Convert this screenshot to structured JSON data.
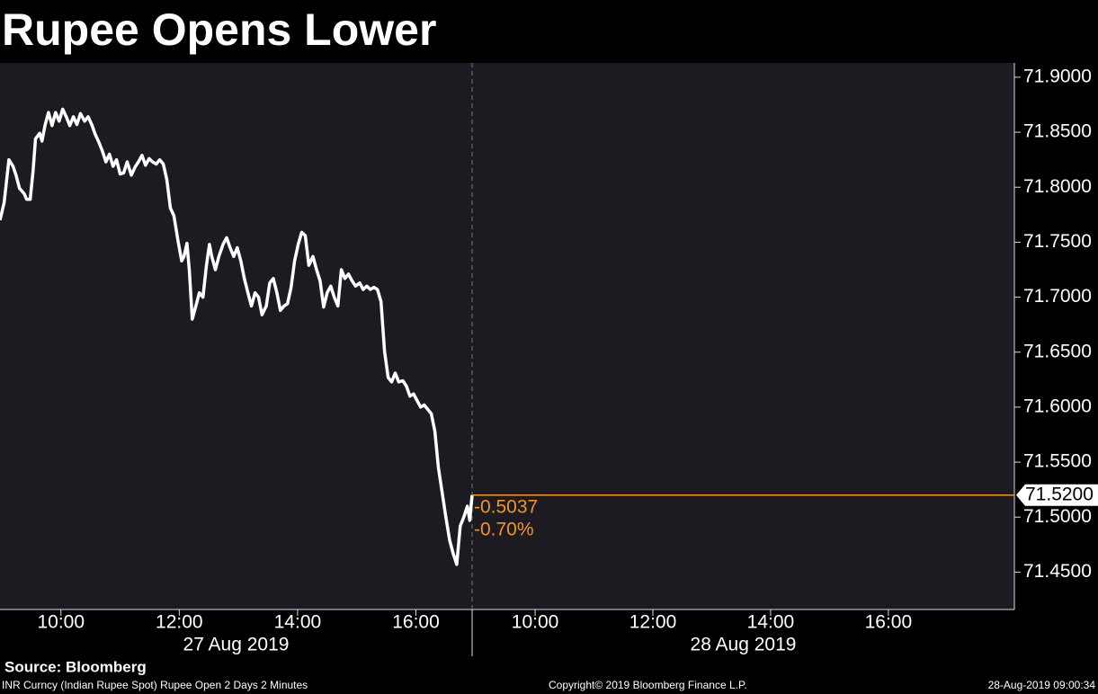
{
  "title": "Rupee Opens Lower",
  "chart_data": {
    "type": "line",
    "color": "#ffffff",
    "ylim": [
      71.416,
      71.913
    ],
    "yticks": [
      {
        "value": 71.45,
        "label": "71.4500"
      },
      {
        "value": 71.5,
        "label": "71.5000"
      },
      {
        "value": 71.55,
        "label": "71.5500"
      },
      {
        "value": 71.6,
        "label": "71.6000"
      },
      {
        "value": 71.65,
        "label": "71.6500"
      },
      {
        "value": 71.7,
        "label": "71.7000"
      },
      {
        "value": 71.75,
        "label": "71.7500"
      },
      {
        "value": 71.8,
        "label": "71.8000"
      },
      {
        "value": 71.85,
        "label": "71.8500"
      },
      {
        "value": 71.9,
        "label": "71.9000"
      }
    ],
    "panels": [
      {
        "date": "27 Aug 2019",
        "xlim": [
          8.97,
          16.95
        ],
        "xticks": [
          {
            "value": 10,
            "label": "10:00"
          },
          {
            "value": 12,
            "label": "12:00"
          },
          {
            "value": 14,
            "label": "14:00"
          },
          {
            "value": 16,
            "label": "16:00"
          }
        ],
        "x": [
          8.97,
          9.04,
          9.12,
          9.19,
          9.24,
          9.3,
          9.38,
          9.42,
          9.48,
          9.53,
          9.57,
          9.64,
          9.68,
          9.73,
          9.79,
          9.85,
          9.91,
          9.97,
          10.03,
          10.09,
          10.15,
          10.21,
          10.27,
          10.33,
          10.4,
          10.46,
          10.52,
          10.58,
          10.64,
          10.7,
          10.76,
          10.82,
          10.88,
          10.94,
          11.0,
          11.06,
          11.12,
          11.19,
          11.25,
          11.31,
          11.37,
          11.43,
          11.49,
          11.55,
          11.61,
          11.67,
          11.73,
          11.79,
          11.85,
          11.91,
          11.98,
          12.04,
          12.08,
          12.13,
          12.17,
          12.22,
          12.28,
          12.34,
          12.4,
          12.46,
          12.51,
          12.55,
          12.61,
          12.67,
          12.74,
          12.8,
          12.86,
          12.92,
          12.98,
          13.04,
          13.1,
          13.16,
          13.22,
          13.28,
          13.34,
          13.4,
          13.47,
          13.53,
          13.59,
          13.65,
          13.71,
          13.77,
          13.83,
          13.89,
          13.95,
          14.01,
          14.07,
          14.13,
          14.19,
          14.26,
          14.32,
          14.38,
          14.44,
          14.5,
          14.56,
          14.62,
          14.68,
          14.74,
          14.8,
          14.86,
          14.92,
          14.98,
          15.05,
          15.11,
          15.17,
          15.23,
          15.29,
          15.35,
          15.41,
          15.47,
          15.53,
          15.59,
          15.65,
          15.71,
          15.78,
          15.84,
          15.9,
          15.96,
          16.02,
          16.08,
          16.14,
          16.2,
          16.26,
          16.32,
          16.38,
          16.44,
          16.5,
          16.57,
          16.63,
          16.69,
          16.75,
          16.81,
          16.87,
          16.91,
          16.95
        ],
        "values": [
          71.77,
          71.786,
          71.825,
          71.819,
          71.811,
          71.799,
          71.794,
          71.789,
          71.789,
          71.815,
          71.844,
          71.849,
          71.842,
          71.856,
          71.868,
          71.856,
          71.868,
          71.86,
          71.871,
          71.864,
          71.856,
          71.864,
          71.857,
          71.867,
          71.86,
          71.864,
          71.857,
          71.848,
          71.841,
          71.833,
          71.823,
          71.83,
          71.819,
          71.825,
          71.812,
          71.813,
          71.823,
          71.811,
          71.818,
          71.823,
          71.829,
          71.82,
          71.826,
          71.823,
          71.821,
          71.825,
          71.821,
          71.807,
          71.781,
          71.774,
          71.751,
          71.733,
          71.737,
          71.749,
          71.725,
          71.68,
          71.692,
          71.704,
          71.7,
          71.729,
          71.748,
          71.737,
          71.725,
          71.737,
          71.748,
          71.754,
          71.745,
          71.737,
          71.745,
          71.733,
          71.717,
          71.704,
          71.692,
          71.704,
          71.7,
          71.684,
          71.692,
          71.713,
          71.717,
          71.704,
          71.688,
          71.692,
          71.694,
          71.709,
          71.733,
          71.748,
          71.759,
          71.756,
          71.729,
          71.737,
          71.725,
          71.715,
          71.691,
          71.704,
          71.71,
          71.7,
          71.692,
          71.725,
          71.717,
          71.721,
          71.715,
          71.71,
          71.713,
          71.707,
          71.71,
          71.707,
          71.709,
          71.707,
          71.696,
          71.651,
          71.627,
          71.623,
          71.631,
          71.623,
          71.624,
          71.619,
          71.61,
          71.612,
          71.606,
          71.6,
          71.602,
          71.598,
          71.594,
          71.578,
          71.545,
          71.524,
          71.502,
          71.479,
          71.467,
          71.457,
          71.492,
          71.5,
          71.51,
          71.497,
          71.52
        ]
      },
      {
        "date": "28 Aug 2019",
        "xlim": [
          8.93,
          18.14
        ],
        "xticks": [
          {
            "value": 10,
            "label": "10:00"
          },
          {
            "value": 12,
            "label": "12:00"
          },
          {
            "value": 14,
            "label": "14:00"
          },
          {
            "value": 16,
            "label": "16:00"
          }
        ]
      }
    ],
    "last_price": {
      "value": 71.52,
      "label": "71.5200"
    },
    "last_color": "#f7941d",
    "change": -0.5037,
    "change_pct": "-0.70%"
  },
  "footer": {
    "source": "Source: Bloomberg",
    "description": "INR Curncy (Indian Rupee Spot) Rupee Open 2 Days 2 Minutes",
    "copyright": "Copyright© 2019 Bloomberg Finance L.P.",
    "timestamp": "28-Aug-2019 09:00:34"
  }
}
